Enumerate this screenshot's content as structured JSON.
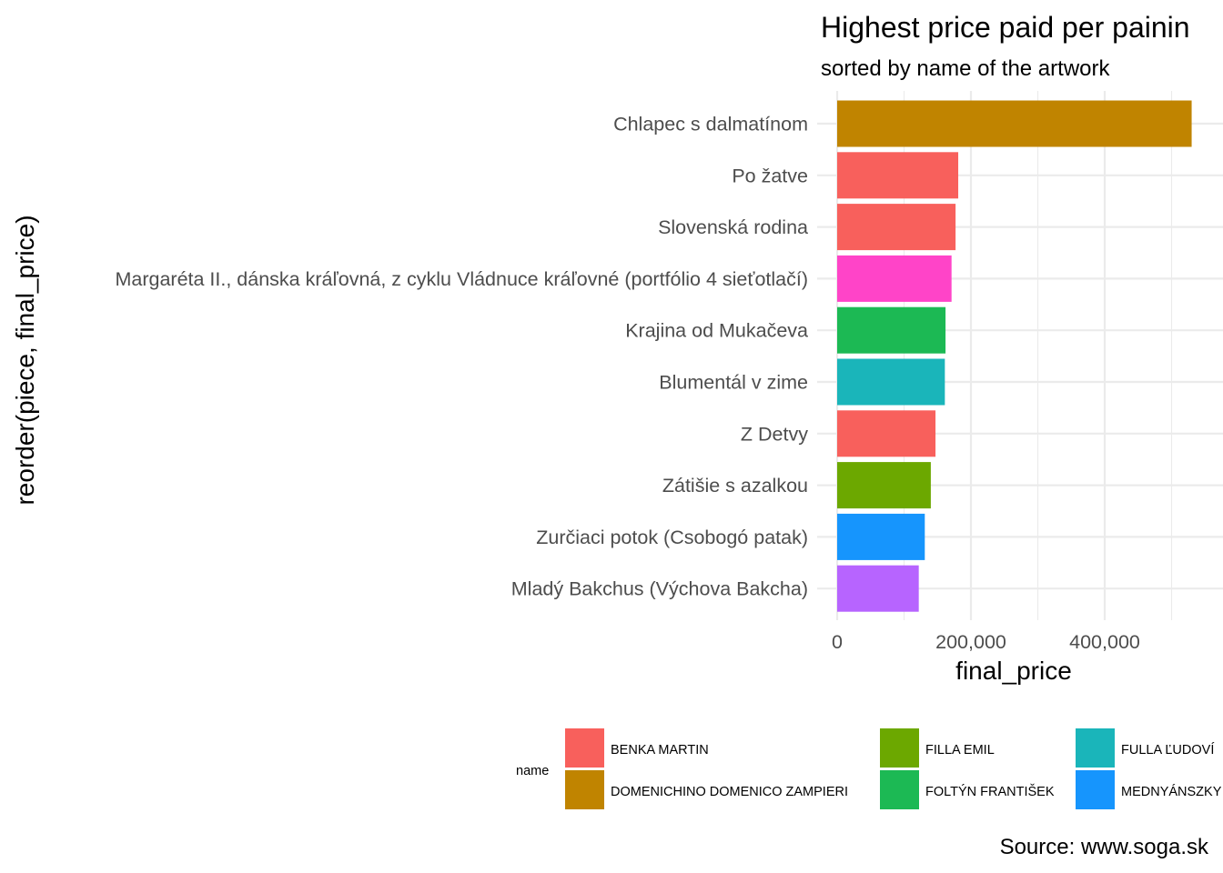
{
  "chart_data": {
    "type": "bar",
    "orientation": "horizontal",
    "title": "Highest price paid per painin",
    "subtitle": "sorted by name of the artwork",
    "xlabel": "final_price",
    "ylabel": "reorder(piece, final_price)",
    "caption": "Source: www.soga.sk",
    "xlim": [
      0,
      540000
    ],
    "x_ticks": [
      0,
      200000,
      400000
    ],
    "x_tick_labels": [
      "0",
      "200,000",
      "400,000"
    ],
    "grid": true,
    "categories": [
      "Chlapec s dalmatínom",
      "Po žatve",
      "Slovenská rodina",
      "Margaréta II., dánska kráľovná, z cyklu Vládnuce kráľovné (portfólio 4 sieťotlačí)",
      "Krajina od Mukačeva",
      "Blumentál v zime",
      "Z Detvy",
      "Zátišie s azalkou",
      "Zurčiaci potok (Csobogó patak)",
      "Mladý Bakchus (Výchova Bakcha)"
    ],
    "values": [
      530000,
      181000,
      177000,
      171000,
      162000,
      161000,
      147000,
      140000,
      131000,
      122000
    ],
    "bar_colors": [
      "#C08400",
      "#F8605C",
      "#F8605C",
      "#FF44C8",
      "#1CB954",
      "#1AB5BA",
      "#F8605C",
      "#6CA800",
      "#1695FD",
      "#B764FF"
    ],
    "legend": {
      "title": "name",
      "position": "bottom",
      "entries": [
        {
          "label": "BENKA MARTIN",
          "color": "#F8605C"
        },
        {
          "label": "DOMENICHINO DOMENICO ZAMPIERI",
          "color": "#C08400"
        },
        {
          "label": "FILLA  EMIL",
          "color": "#6CA800"
        },
        {
          "label": "FOLTÝN FRANTIŠEK",
          "color": "#1CB954"
        },
        {
          "label": "FULLA ĽUDOVÍ",
          "color": "#1AB5BA"
        },
        {
          "label": "MEDNYÁNSZKY",
          "color": "#1695FD"
        }
      ]
    }
  }
}
